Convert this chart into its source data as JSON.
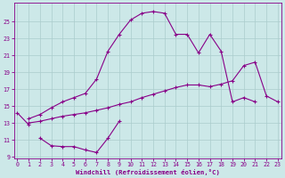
{
  "xlabel": "Windchill (Refroidissement éolien,°C)",
  "bg_color": "#cce8e8",
  "line_color": "#880088",
  "grid_color": "#aacccc",
  "series": [
    {
      "x": [
        0,
        1
      ],
      "y": [
        14.2,
        12.8
      ]
    },
    {
      "x": [
        2,
        3,
        4,
        5,
        6,
        7,
        8,
        9
      ],
      "y": [
        11.2,
        10.3,
        10.2,
        10.2,
        9.8,
        9.5,
        11.2,
        13.2
      ]
    },
    {
      "x": [
        1,
        2,
        3,
        4,
        5,
        6,
        7,
        8,
        9,
        10,
        11,
        12,
        13,
        14,
        15,
        16,
        17,
        18,
        19,
        20,
        21,
        22,
        23
      ],
      "y": [
        13.0,
        13.2,
        13.5,
        13.8,
        14.0,
        14.2,
        14.5,
        14.8,
        15.2,
        15.5,
        16.0,
        16.4,
        16.8,
        17.2,
        17.5,
        17.5,
        17.3,
        17.6,
        18.0,
        19.8,
        20.2,
        16.2,
        15.5
      ]
    },
    {
      "x": [
        1,
        2,
        3,
        4,
        5,
        6,
        7,
        8,
        9,
        10,
        11,
        12,
        13,
        14,
        15,
        16,
        17,
        18,
        19,
        20,
        21,
        22,
        23
      ],
      "y": [
        13.5,
        14.0,
        14.8,
        15.5,
        16.0,
        16.5,
        18.2,
        21.5,
        23.5,
        25.2,
        26.0,
        26.2,
        26.0,
        23.5,
        23.5,
        21.3,
        23.5,
        21.5,
        15.5,
        16.0,
        15.5,
        null,
        null
      ]
    }
  ],
  "xlim": [
    -0.3,
    23.3
  ],
  "ylim": [
    8.8,
    27.2
  ],
  "yticks": [
    9,
    11,
    13,
    15,
    17,
    19,
    21,
    23,
    25
  ],
  "xticks": [
    0,
    1,
    2,
    3,
    4,
    5,
    6,
    7,
    8,
    9,
    10,
    11,
    12,
    13,
    14,
    15,
    16,
    17,
    18,
    19,
    20,
    21,
    22,
    23
  ]
}
